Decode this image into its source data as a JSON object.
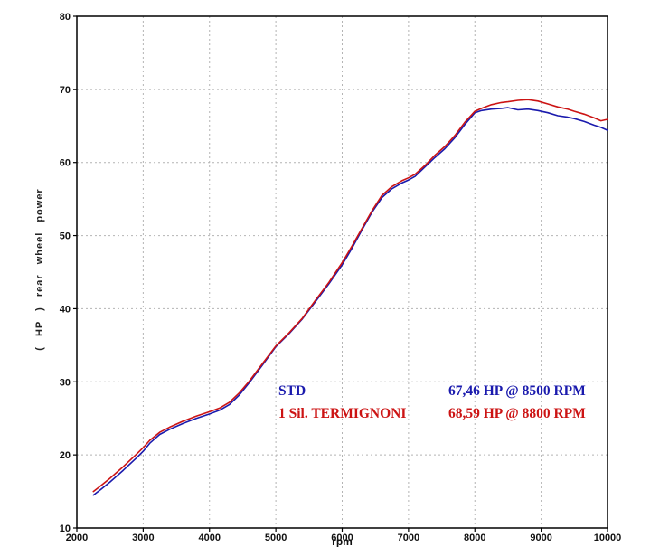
{
  "chart_data": {
    "type": "line",
    "title": "",
    "xlabel": "rpm",
    "ylabel": "( HP )  rear  wheel  power",
    "xlim": [
      2000,
      10000
    ],
    "ylim": [
      10,
      80
    ],
    "x_major": 1000,
    "y_major": 10,
    "grid": true,
    "grid_style": "dashed",
    "legend_position": "inside lower-right",
    "series": [
      {
        "name": "STD",
        "color": "#1a1aad",
        "peak": "67,46 HP @ 8500 RPM",
        "points": [
          [
            2250,
            14.5
          ],
          [
            2350,
            15.2
          ],
          [
            2500,
            16.3
          ],
          [
            2700,
            17.9
          ],
          [
            2900,
            19.6
          ],
          [
            3000,
            20.5
          ],
          [
            3100,
            21.6
          ],
          [
            3250,
            22.8
          ],
          [
            3400,
            23.5
          ],
          [
            3600,
            24.3
          ],
          [
            3800,
            25.0
          ],
          [
            4000,
            25.6
          ],
          [
            4150,
            26.1
          ],
          [
            4300,
            26.9
          ],
          [
            4450,
            28.2
          ],
          [
            4600,
            29.9
          ],
          [
            4800,
            32.3
          ],
          [
            5000,
            34.8
          ],
          [
            5200,
            36.6
          ],
          [
            5400,
            38.6
          ],
          [
            5600,
            41.0
          ],
          [
            5800,
            43.4
          ],
          [
            6000,
            46.0
          ],
          [
            6150,
            48.3
          ],
          [
            6300,
            50.8
          ],
          [
            6450,
            53.2
          ],
          [
            6600,
            55.2
          ],
          [
            6750,
            56.4
          ],
          [
            6900,
            57.2
          ],
          [
            7000,
            57.6
          ],
          [
            7100,
            58.1
          ],
          [
            7250,
            59.4
          ],
          [
            7400,
            60.7
          ],
          [
            7550,
            61.9
          ],
          [
            7700,
            63.4
          ],
          [
            7850,
            65.2
          ],
          [
            8000,
            66.8
          ],
          [
            8100,
            67.1
          ],
          [
            8250,
            67.3
          ],
          [
            8400,
            67.4
          ],
          [
            8500,
            67.5
          ],
          [
            8650,
            67.2
          ],
          [
            8800,
            67.3
          ],
          [
            8950,
            67.1
          ],
          [
            9100,
            66.8
          ],
          [
            9250,
            66.4
          ],
          [
            9400,
            66.2
          ],
          [
            9500,
            66.0
          ],
          [
            9650,
            65.6
          ],
          [
            9800,
            65.1
          ],
          [
            9900,
            64.8
          ],
          [
            10000,
            64.4
          ]
        ]
      },
      {
        "name": "1 Sil. TERMIGNONI",
        "color": "#cc1414",
        "peak": "68,59 HP @ 8800 RPM",
        "points": [
          [
            2250,
            15.0
          ],
          [
            2350,
            15.7
          ],
          [
            2500,
            16.8
          ],
          [
            2700,
            18.4
          ],
          [
            2900,
            20.1
          ],
          [
            3000,
            21.0
          ],
          [
            3100,
            22.0
          ],
          [
            3250,
            23.1
          ],
          [
            3400,
            23.8
          ],
          [
            3600,
            24.6
          ],
          [
            3800,
            25.3
          ],
          [
            4000,
            25.9
          ],
          [
            4150,
            26.4
          ],
          [
            4300,
            27.2
          ],
          [
            4450,
            28.5
          ],
          [
            4600,
            30.1
          ],
          [
            4800,
            32.5
          ],
          [
            5000,
            34.9
          ],
          [
            5200,
            36.7
          ],
          [
            5400,
            38.7
          ],
          [
            5600,
            41.2
          ],
          [
            5800,
            43.6
          ],
          [
            6000,
            46.3
          ],
          [
            6150,
            48.6
          ],
          [
            6300,
            51.0
          ],
          [
            6450,
            53.4
          ],
          [
            6600,
            55.5
          ],
          [
            6750,
            56.7
          ],
          [
            6900,
            57.5
          ],
          [
            7000,
            57.9
          ],
          [
            7100,
            58.4
          ],
          [
            7250,
            59.6
          ],
          [
            7400,
            61.0
          ],
          [
            7550,
            62.2
          ],
          [
            7700,
            63.7
          ],
          [
            7850,
            65.5
          ],
          [
            8000,
            67.0
          ],
          [
            8100,
            67.4
          ],
          [
            8250,
            67.9
          ],
          [
            8400,
            68.2
          ],
          [
            8500,
            68.3
          ],
          [
            8650,
            68.5
          ],
          [
            8800,
            68.6
          ],
          [
            8950,
            68.4
          ],
          [
            9100,
            68.0
          ],
          [
            9250,
            67.6
          ],
          [
            9400,
            67.3
          ],
          [
            9500,
            67.0
          ],
          [
            9650,
            66.6
          ],
          [
            9800,
            66.1
          ],
          [
            9900,
            65.7
          ],
          [
            10000,
            65.9
          ]
        ]
      }
    ]
  },
  "legend": {
    "rows": [
      {
        "label": "STD",
        "value": "67,46 HP @ 8500 RPM"
      },
      {
        "label": "1 Sil. TERMIGNONI",
        "value": "68,59 HP @ 8800 RPM"
      }
    ]
  }
}
